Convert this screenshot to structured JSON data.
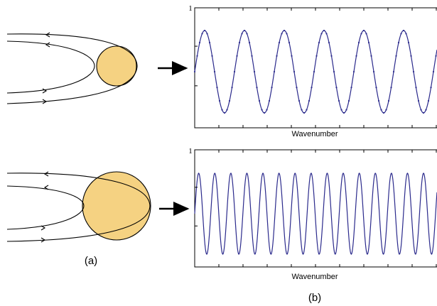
{
  "panels": [
    {
      "y_tick_label": "1",
      "x_label": "Wavenumber"
    },
    {
      "y_tick_label": "1",
      "x_label": "Wavenumber"
    }
  ],
  "labels": {
    "a": "(a)",
    "b": "(b)"
  }
}
